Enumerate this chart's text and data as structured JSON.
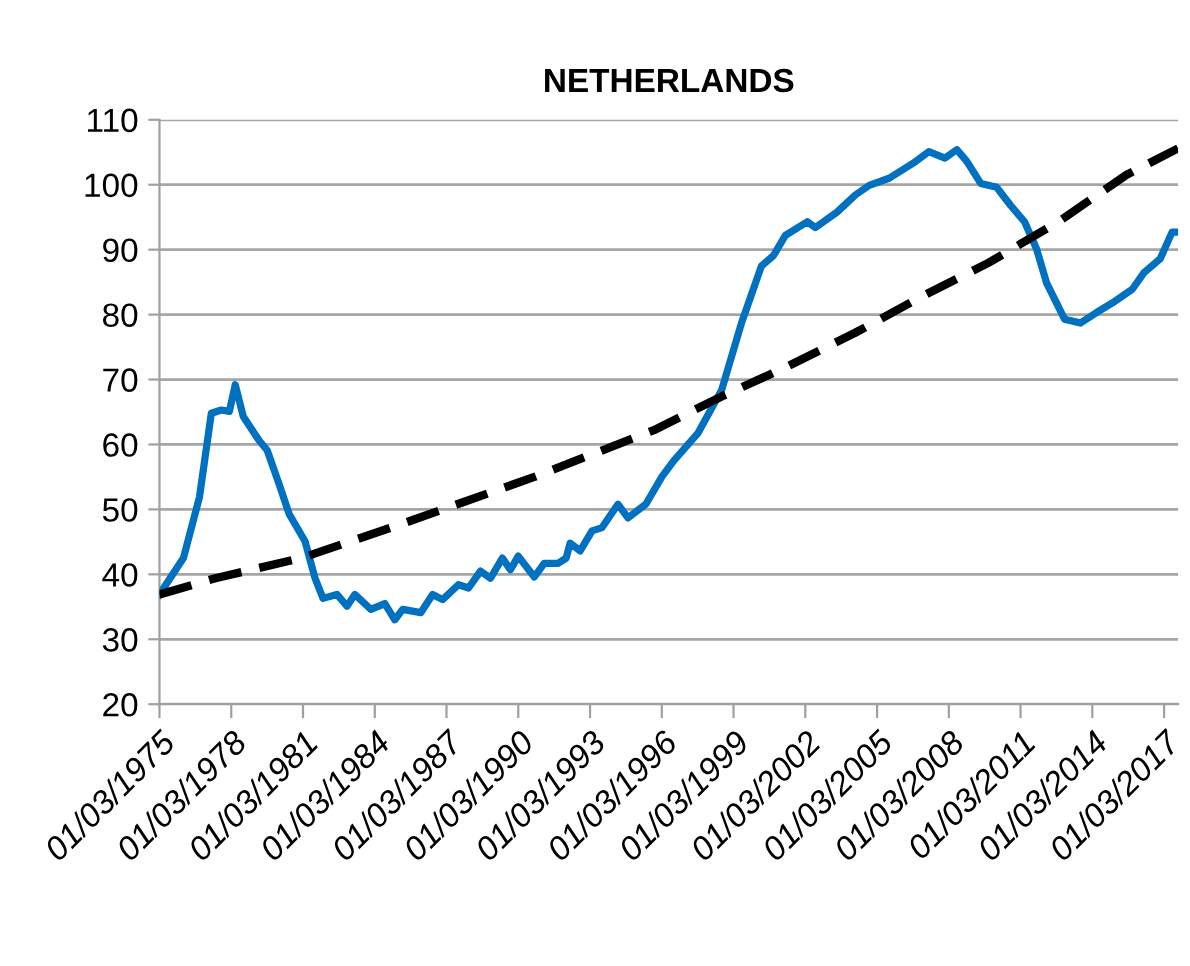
{
  "chart_data": {
    "type": "line",
    "title": "NETHERLANDS",
    "ylim": [
      20,
      110
    ],
    "yticks": [
      20,
      30,
      40,
      50,
      60,
      70,
      80,
      90,
      100,
      110
    ],
    "xlim": [
      "1975-03",
      "2017-10"
    ],
    "xticks": [
      {
        "value": "1975-03-01",
        "label": "01/03/1975"
      },
      {
        "value": "1978-03-01",
        "label": "01/03/1978"
      },
      {
        "value": "1981-03-01",
        "label": "01/03/1981"
      },
      {
        "value": "1984-03-01",
        "label": "01/03/1984"
      },
      {
        "value": "1987-03-01",
        "label": "01/03/1987"
      },
      {
        "value": "1990-03-01",
        "label": "01/03/1990"
      },
      {
        "value": "1993-03-01",
        "label": "01/03/1993"
      },
      {
        "value": "1996-03-01",
        "label": "01/03/1996"
      },
      {
        "value": "1999-03-01",
        "label": "01/03/1999"
      },
      {
        "value": "2002-03-01",
        "label": "01/03/2002"
      },
      {
        "value": "2005-03-01",
        "label": "01/03/2005"
      },
      {
        "value": "2008-03-01",
        "label": "01/03/2008"
      },
      {
        "value": "2011-03-01",
        "label": "01/03/2011"
      },
      {
        "value": "2014-03-01",
        "label": "01/03/2014"
      },
      {
        "value": "2017-03-01",
        "label": "01/03/2017"
      }
    ],
    "grid": "y",
    "legend": false,
    "series": [
      {
        "color": "#0070c0",
        "line_style": "solid",
        "x": [
          "1975-03",
          "1976-03",
          "1976-11",
          "1977-05",
          "1977-10",
          "1978-02",
          "1978-05",
          "1978-09",
          "1979-05",
          "1979-09",
          "1980-03",
          "1980-08",
          "1981-04",
          "1981-09",
          "1982-01",
          "1982-08",
          "1983-01",
          "1983-05",
          "1984-01",
          "1984-08",
          "1985-01",
          "1985-05",
          "1986-02",
          "1986-08",
          "1987-01",
          "1987-09",
          "1988-02",
          "1988-08",
          "1989-01",
          "1989-07",
          "1989-11",
          "1990-03",
          "1990-11",
          "1991-04",
          "1991-11",
          "1992-03",
          "1992-05",
          "1992-10",
          "1993-04",
          "1993-09",
          "1994-05",
          "1994-10",
          "1995-07",
          "1996-03",
          "1996-09",
          "1997-09",
          "1998-09",
          "1999-07",
          "2000-05",
          "2000-11",
          "2001-05",
          "2002-04",
          "2002-08",
          "2003-07",
          "2004-04",
          "2004-11",
          "2005-09",
          "2006-09",
          "2007-05",
          "2008-01",
          "2008-07",
          "2008-12",
          "2009-07",
          "2010-03",
          "2010-10",
          "2011-05",
          "2011-11",
          "2012-04",
          "2013-01",
          "2013-09",
          "2014-05",
          "2015-01",
          "2015-11",
          "2016-05",
          "2017-01",
          "2017-07",
          "2017-10"
        ],
        "values": [
          36.9,
          42.5,
          51.9,
          64.8,
          65.3,
          65.1,
          69.2,
          64.3,
          60.6,
          59.1,
          53.9,
          49.3,
          45.1,
          39.4,
          36.3,
          36.9,
          35.1,
          36.9,
          34.6,
          35.5,
          33.0,
          34.6,
          34.1,
          36.9,
          36.1,
          38.4,
          37.9,
          40.5,
          39.4,
          42.5,
          40.7,
          42.8,
          39.6,
          41.7,
          41.7,
          42.5,
          44.8,
          43.6,
          46.7,
          47.2,
          50.8,
          48.7,
          50.8,
          55.0,
          57.5,
          61.7,
          68.4,
          78.7,
          87.5,
          89.1,
          92.2,
          94.3,
          93.4,
          95.8,
          98.4,
          99.9,
          101.0,
          103.3,
          105.1,
          104.1,
          105.4,
          103.6,
          100.2,
          99.6,
          96.8,
          94.3,
          90.1,
          84.9,
          79.3,
          78.7,
          80.3,
          81.8,
          83.9,
          86.5,
          88.6,
          92.7,
          92.7
        ]
      },
      {
        "color": "#000000",
        "line_style": "dashed",
        "x": [
          "1975-03",
          "1977-07",
          "1981-02",
          "1985-04",
          "1990-11",
          "1995-11",
          "1998-09",
          "2001-06",
          "2004-04",
          "2007-02",
          "2009-11",
          "2012-10",
          "2015-08",
          "2017-10"
        ],
        "values": [
          36.9,
          39.4,
          42.5,
          47.7,
          55.0,
          62.2,
          67.4,
          72.0,
          77.2,
          82.9,
          88.0,
          94.3,
          101.5,
          105.6
        ]
      }
    ]
  }
}
